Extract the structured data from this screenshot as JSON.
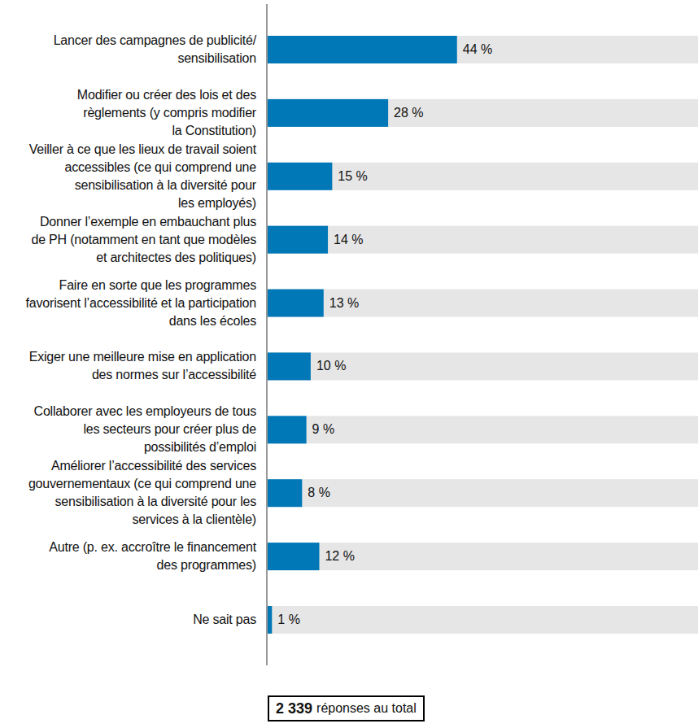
{
  "chart_data": {
    "type": "bar",
    "orientation": "horizontal",
    "categories": [
      "Lancer des campagnes de publicité/\nsensibilisation",
      "Modifier ou créer des lois et des\nrèglements (y compris modifier\nla Constitution)",
      "Veiller à ce que les lieux de travail soient\naccessibles (ce qui comprend une\nsensibilisation à la diversité pour\nles employés)",
      "Donner l’exemple en embauchant plus\nde PH (notamment en tant que modèles\net architectes des politiques)",
      "Faire en sorte que les programmes\nfavorisent l’accessibilité et la participation\ndans les écoles",
      "Exiger une meilleure mise en application\ndes normes sur l’accessibilité",
      "Collaborer avec les employeurs de tous\nles secteurs pour créer plus de\npossibilités d’emploi",
      "Améliorer l’accessibilité des services\ngouvernementaux (ce qui comprend une\nsensibilisation à la diversité pour les\nservices à la clientèle)",
      "Autre (p. ex. accroître le financement\ndes programmes)",
      "Ne sait pas"
    ],
    "values": [
      44,
      28,
      15,
      14,
      13,
      10,
      9,
      8,
      12,
      1
    ],
    "value_labels": [
      "44 %",
      "28 %",
      "15 %",
      "14 %",
      "13 %",
      "10 %",
      "9 %",
      "8 %",
      "12 %",
      "1 %"
    ],
    "color": "#0077b6",
    "xlim": [
      0,
      100
    ],
    "tick_labels": false,
    "data_labels": true,
    "annotation": {
      "total": "2 339",
      "text": "réponses au total"
    }
  }
}
